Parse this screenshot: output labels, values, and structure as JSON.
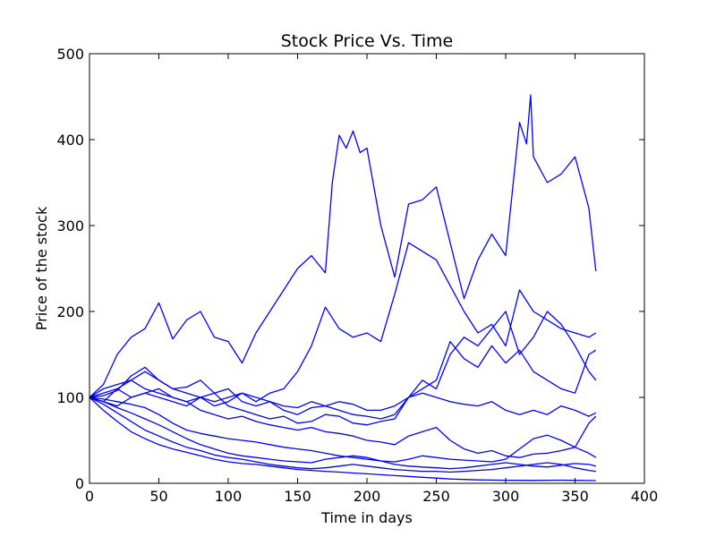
{
  "chart_data": {
    "type": "line",
    "title": "Stock Price Vs. Time",
    "xlabel": "Time in days",
    "ylabel": "Price of the stock",
    "xlim": [
      0,
      400
    ],
    "ylim": [
      0,
      500
    ],
    "xticks": [
      0,
      50,
      100,
      150,
      200,
      250,
      300,
      350,
      400
    ],
    "yticks": [
      0,
      100,
      200,
      300,
      400,
      500
    ],
    "grid": false,
    "line_color": "#0000ff",
    "series": [
      {
        "x": [
          0,
          10,
          20,
          30,
          40,
          50,
          60,
          70,
          80,
          90,
          100,
          110,
          120,
          130,
          140,
          150,
          160,
          170,
          175,
          180,
          185,
          190,
          195,
          200,
          210,
          215,
          220,
          230,
          240,
          250,
          260,
          270,
          280,
          290,
          300,
          310,
          315,
          318,
          320,
          330,
          340,
          350,
          355,
          360,
          365
        ],
        "values": [
          100,
          115,
          150,
          170,
          180,
          210,
          168,
          190,
          200,
          170,
          165,
          140,
          175,
          200,
          225,
          250,
          265,
          245,
          350,
          405,
          390,
          410,
          385,
          390,
          300,
          270,
          240,
          325,
          330,
          345,
          280,
          215,
          260,
          290,
          265,
          420,
          395,
          452,
          380,
          350,
          360,
          380,
          350,
          320,
          247
        ]
      },
      {
        "x": [
          0,
          10,
          20,
          30,
          40,
          50,
          60,
          70,
          80,
          90,
          100,
          110,
          120,
          130,
          140,
          150,
          160,
          170,
          180,
          190,
          200,
          210,
          220,
          230,
          240,
          250,
          260,
          270,
          280,
          290,
          300,
          310,
          320,
          330,
          340,
          350,
          360,
          365
        ],
        "values": [
          100,
          95,
          110,
          120,
          130,
          120,
          110,
          105,
          100,
          95,
          100,
          105,
          95,
          105,
          110,
          130,
          160,
          205,
          180,
          170,
          175,
          165,
          220,
          280,
          270,
          260,
          230,
          200,
          175,
          185,
          160,
          225,
          200,
          190,
          180,
          175,
          170,
          175
        ]
      },
      {
        "x": [
          0,
          10,
          20,
          30,
          40,
          50,
          60,
          70,
          80,
          90,
          100,
          110,
          120,
          130,
          140,
          150,
          160,
          170,
          180,
          190,
          200,
          210,
          220,
          230,
          240,
          250,
          260,
          270,
          280,
          290,
          300,
          310,
          320,
          330,
          340,
          350,
          360,
          365
        ],
        "values": [
          100,
          105,
          110,
          100,
          105,
          100,
          95,
          90,
          100,
          105,
          110,
          95,
          90,
          95,
          85,
          80,
          88,
          90,
          95,
          92,
          85,
          85,
          90,
          100,
          120,
          110,
          150,
          170,
          160,
          180,
          200,
          150,
          170,
          200,
          185,
          160,
          130,
          120
        ]
      },
      {
        "x": [
          0,
          10,
          20,
          30,
          40,
          50,
          60,
          70,
          80,
          90,
          100,
          110,
          120,
          130,
          140,
          150,
          160,
          170,
          180,
          190,
          200,
          210,
          220,
          230,
          240,
          250,
          260,
          270,
          280,
          290,
          300,
          310,
          320,
          330,
          340,
          350,
          360,
          365
        ],
        "values": [
          100,
          110,
          115,
          120,
          110,
          105,
          100,
          95,
          100,
          90,
          95,
          105,
          100,
          95,
          90,
          88,
          95,
          90,
          85,
          80,
          78,
          75,
          80,
          100,
          110,
          120,
          165,
          145,
          135,
          160,
          140,
          155,
          130,
          120,
          110,
          105,
          150,
          155
        ]
      },
      {
        "x": [
          0,
          10,
          20,
          30,
          40,
          50,
          60,
          70,
          80,
          90,
          100,
          110,
          120,
          130,
          140,
          150,
          160,
          170,
          180,
          190,
          200,
          210,
          220,
          230,
          240,
          250,
          260,
          270,
          280,
          290,
          300,
          310,
          320,
          330,
          340,
          350,
          360,
          365
        ],
        "values": [
          100,
          102,
          108,
          125,
          135,
          120,
          110,
          112,
          120,
          105,
          90,
          85,
          80,
          75,
          78,
          70,
          72,
          80,
          78,
          70,
          68,
          72,
          75,
          100,
          105,
          100,
          95,
          92,
          90,
          95,
          85,
          80,
          85,
          80,
          90,
          85,
          78,
          82
        ]
      },
      {
        "x": [
          0,
          10,
          20,
          30,
          40,
          50,
          60,
          70,
          80,
          90,
          100,
          110,
          120,
          130,
          140,
          150,
          160,
          170,
          180,
          190,
          200,
          210,
          220,
          230,
          240,
          250,
          260,
          270,
          280,
          290,
          300,
          310,
          320,
          330,
          340,
          350,
          360,
          365
        ],
        "values": [
          100,
          95,
          90,
          100,
          105,
          110,
          100,
          95,
          85,
          80,
          75,
          78,
          72,
          68,
          65,
          62,
          65,
          60,
          58,
          55,
          50,
          48,
          45,
          55,
          60,
          65,
          50,
          40,
          35,
          38,
          32,
          30,
          34,
          35,
          38,
          42,
          70,
          78
        ]
      },
      {
        "x": [
          0,
          10,
          20,
          30,
          40,
          50,
          60,
          70,
          80,
          90,
          100,
          110,
          120,
          130,
          140,
          150,
          160,
          170,
          180,
          190,
          200,
          210,
          220,
          230,
          240,
          250,
          260,
          270,
          280,
          290,
          300,
          310,
          320,
          330,
          340,
          350,
          360,
          365
        ],
        "values": [
          100,
          98,
          95,
          92,
          88,
          80,
          70,
          62,
          58,
          55,
          52,
          50,
          48,
          45,
          42,
          40,
          38,
          35,
          32,
          30,
          28,
          26,
          25,
          28,
          32,
          30,
          28,
          27,
          26,
          25,
          28,
          40,
          52,
          56,
          50,
          42,
          35,
          30
        ]
      },
      {
        "x": [
          0,
          10,
          20,
          30,
          40,
          50,
          60,
          70,
          80,
          90,
          100,
          110,
          120,
          130,
          140,
          150,
          160,
          170,
          180,
          190,
          200,
          210,
          220,
          230,
          240,
          250,
          260,
          270,
          280,
          290,
          300,
          310,
          320,
          330,
          340,
          350,
          360,
          365
        ],
        "values": [
          100,
          95,
          88,
          82,
          75,
          68,
          60,
          52,
          45,
          40,
          35,
          32,
          30,
          28,
          26,
          25,
          24,
          28,
          30,
          32,
          30,
          26,
          22,
          20,
          19,
          18,
          17,
          18,
          20,
          22,
          24,
          22,
          20,
          19,
          21,
          23,
          22,
          20
        ]
      },
      {
        "x": [
          0,
          10,
          20,
          30,
          40,
          50,
          60,
          70,
          80,
          90,
          100,
          110,
          120,
          130,
          140,
          150,
          160,
          170,
          180,
          190,
          200,
          210,
          220,
          230,
          240,
          250,
          260,
          270,
          280,
          290,
          300,
          310,
          320,
          330,
          340,
          350,
          360,
          365
        ],
        "values": [
          100,
          92,
          82,
          72,
          62,
          55,
          48,
          42,
          38,
          33,
          30,
          28,
          25,
          22,
          20,
          18,
          17,
          18,
          20,
          22,
          20,
          18,
          16,
          15,
          14,
          14,
          13,
          14,
          15,
          16,
          18,
          20,
          22,
          24,
          22,
          18,
          15,
          14
        ]
      },
      {
        "x": [
          0,
          10,
          20,
          30,
          40,
          50,
          60,
          70,
          80,
          90,
          100,
          110,
          120,
          130,
          140,
          150,
          160,
          170,
          180,
          190,
          200,
          210,
          220,
          230,
          240,
          250,
          260,
          270,
          280,
          290,
          300,
          310,
          320,
          330,
          340,
          350,
          360,
          365
        ],
        "values": [
          100,
          85,
          72,
          60,
          52,
          45,
          40,
          36,
          32,
          28,
          25,
          23,
          22,
          20,
          18,
          16,
          15,
          14,
          13,
          12,
          11,
          10,
          9,
          8,
          7,
          6,
          5,
          4.5,
          4,
          3.8,
          3.5,
          3.4,
          3.3,
          3.5,
          3.6,
          3.4,
          3.2,
          3.1
        ]
      }
    ]
  }
}
